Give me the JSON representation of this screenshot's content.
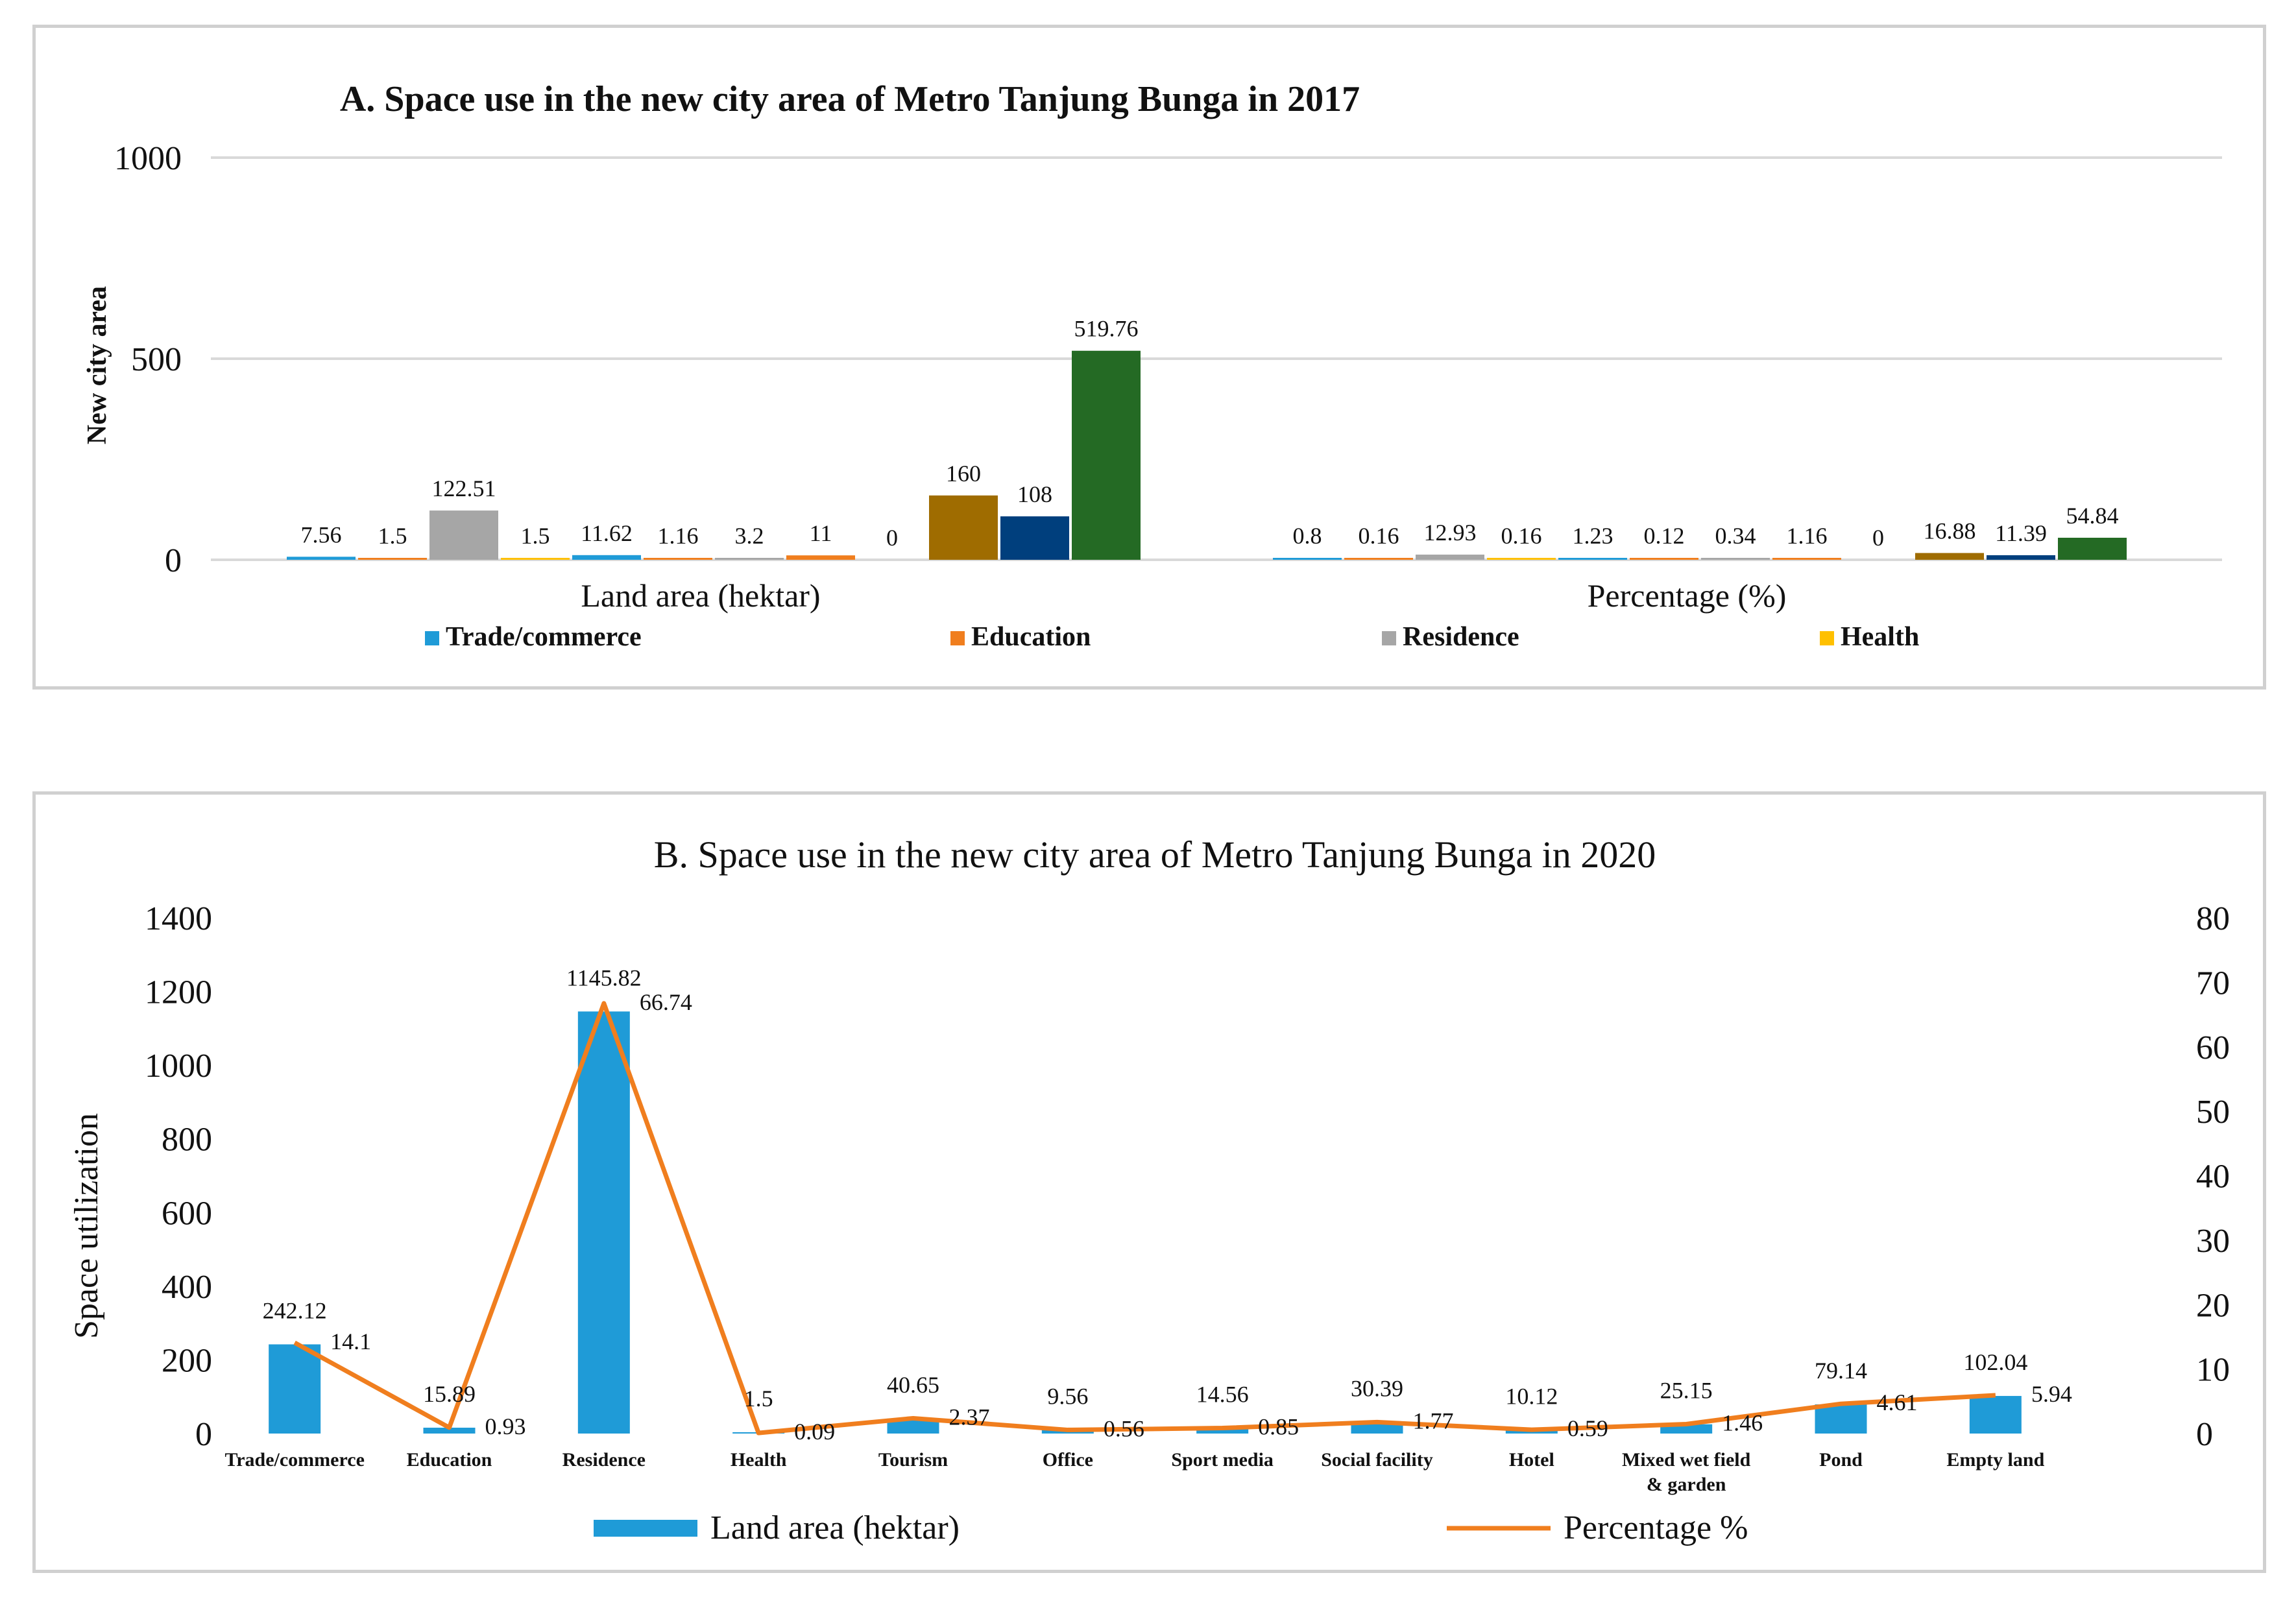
{
  "colors": {
    "trade": "#1f9bd7",
    "education": "#f07e1e",
    "residence": "#a6a6a6",
    "health": "#ffc000",
    "tourism": "#9f6c00",
    "office": "#003f7d",
    "green": "#246a24",
    "line": "#f07e1e",
    "grid": "#d9d9d9"
  },
  "chart_data": [
    {
      "type": "bar",
      "title": "A. Space use in the new city area of Metro Tanjung Bunga in 2017",
      "ylabel": "New city area",
      "ylim": [
        0,
        1000
      ],
      "yticks": [
        "0",
        "500",
        "1000"
      ],
      "categories": [
        "Land area (hektar)",
        "Percentage (%)"
      ],
      "legend": [
        "Trade/commerce",
        "Education",
        "Residence",
        "Health"
      ],
      "bars": [
        {
          "colorKey": "trade",
          "values": [
            7.56,
            0.8
          ],
          "labels": [
            "7.56",
            "0.8"
          ]
        },
        {
          "colorKey": "education",
          "values": [
            1.5,
            0.16
          ],
          "labels": [
            "1.5",
            "0.16"
          ]
        },
        {
          "colorKey": "residence",
          "values": [
            122.51,
            12.93
          ],
          "labels": [
            "122.51",
            "12.93"
          ]
        },
        {
          "colorKey": "health",
          "values": [
            1.5,
            0.16
          ],
          "labels": [
            "1.5",
            "0.16"
          ]
        },
        {
          "colorKey": "trade",
          "values": [
            11.62,
            1.23
          ],
          "labels": [
            "11.62",
            "1.23"
          ]
        },
        {
          "colorKey": "education",
          "values": [
            1.16,
            0.12
          ],
          "labels": [
            "1.16",
            "0.12"
          ]
        },
        {
          "colorKey": "residence",
          "values": [
            3.2,
            0.34
          ],
          "labels": [
            "3.2",
            "0.34"
          ]
        },
        {
          "colorKey": "education",
          "values": [
            11,
            1.16
          ],
          "labels": [
            "11",
            "1.16"
          ]
        },
        {
          "colorKey": "trade",
          "values": [
            0,
            0
          ],
          "labels": [
            "0",
            "0"
          ]
        },
        {
          "colorKey": "tourism",
          "values": [
            160,
            16.88
          ],
          "labels": [
            "160",
            "16.88"
          ]
        },
        {
          "colorKey": "office",
          "values": [
            108,
            11.39
          ],
          "labels": [
            "108",
            "11.39"
          ]
        },
        {
          "colorKey": "green",
          "values": [
            519.76,
            54.84
          ],
          "labels": [
            "519.76",
            "54.84"
          ]
        }
      ]
    },
    {
      "type": "bar+line",
      "title": "B. Space use in the new city area of Metro Tanjung Bunga in 2020",
      "ylabel": "Space utilization",
      "ylim": [
        0,
        1400
      ],
      "yticks": [
        "0",
        "200",
        "400",
        "600",
        "800",
        "1000",
        "1200",
        "1400"
      ],
      "y2lim": [
        0,
        80
      ],
      "y2ticks": [
        "0",
        "10",
        "20",
        "30",
        "40",
        "50",
        "60",
        "70",
        "80"
      ],
      "categories": [
        "Trade/commerce",
        "Education",
        "Residence",
        "Health",
        "Tourism",
        "Office",
        "Sport media",
        "Social facility",
        "Hotel",
        "Mixed wet field & garden",
        "Pond",
        "Empty land"
      ],
      "series": [
        {
          "name": "Land area (hektar)",
          "type": "bar",
          "values": [
            242.12,
            15.89,
            1145.82,
            1.5,
            40.65,
            9.56,
            14.56,
            30.39,
            10.12,
            25.15,
            79.14,
            102.04
          ],
          "labels": [
            "242.12",
            "15.89",
            "1145.82",
            "1.5",
            "40.65",
            "9.56",
            "14.56",
            "30.39",
            "10.12",
            "25.15",
            "79.14",
            "102.04"
          ]
        },
        {
          "name": "Percentage %",
          "type": "line",
          "axis": "right",
          "values": [
            14.1,
            0.93,
            66.74,
            0.09,
            2.37,
            0.56,
            0.85,
            1.77,
            0.59,
            1.46,
            4.61,
            5.94
          ],
          "labels": [
            "14.1",
            "0.93",
            "66.74",
            "0.09",
            "2.37",
            "0.56",
            "0.85",
            "1.77",
            "0.59",
            "1.46",
            "4.61",
            "5.94"
          ]
        }
      ],
      "legend": [
        "Land area (hektar)",
        "Percentage %"
      ]
    }
  ]
}
